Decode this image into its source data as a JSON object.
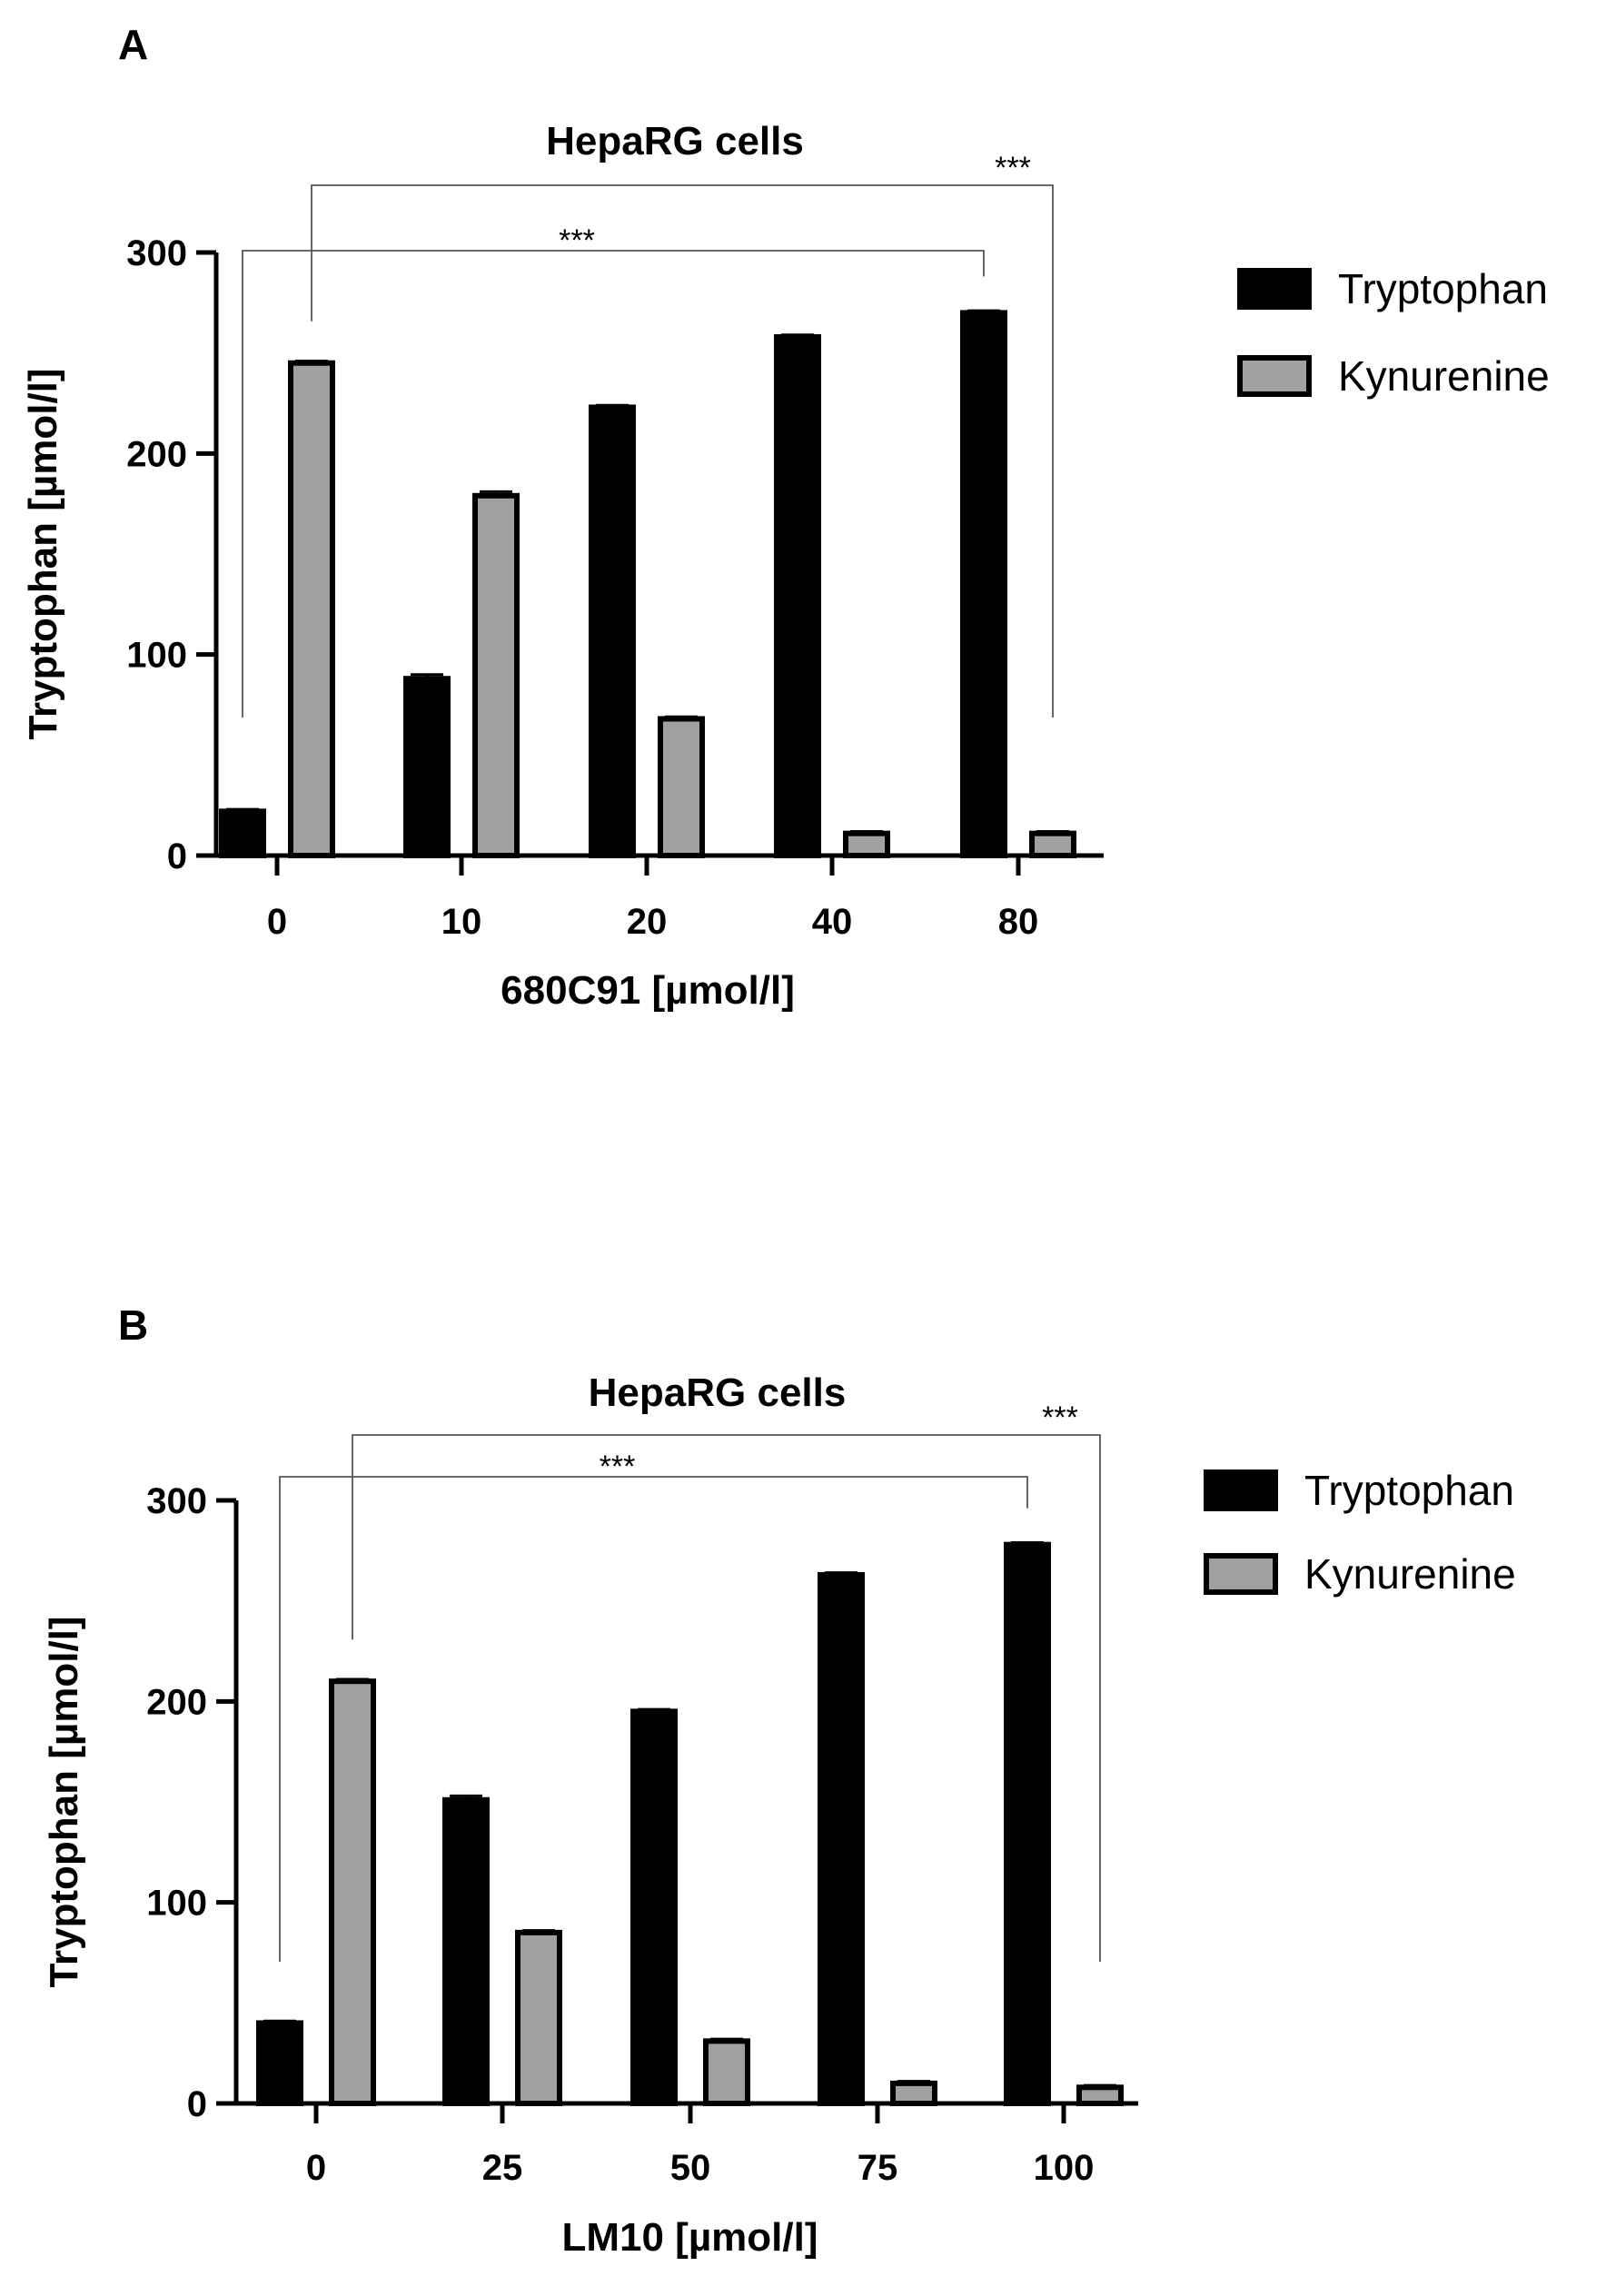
{
  "figure": {
    "panels": [
      "A",
      "B"
    ]
  },
  "chart_data": [
    {
      "panel": "A",
      "type": "bar",
      "title": "HepaRG cells",
      "xlabel": "680C91 [µmol/l]",
      "ylabel": "Tryptophan [µmol/l]",
      "ylim": [
        0,
        300
      ],
      "yticks": [
        "0",
        "100",
        "200",
        "300"
      ],
      "categories": [
        "0",
        "10",
        "20",
        "40",
        "80"
      ],
      "series": [
        {
          "name": "Tryptophan",
          "color": "#000000",
          "values": [
            22,
            88,
            223,
            258,
            270
          ],
          "errors": [
            1,
            2,
            1,
            1,
            1
          ]
        },
        {
          "name": "Kynurenine",
          "color": "#a0a0a0",
          "values": [
            245,
            179,
            68,
            11,
            11
          ],
          "errors": [
            1,
            2,
            1,
            1,
            1
          ]
        }
      ],
      "significance": [
        {
          "label": "***",
          "from": {
            "category": 0,
            "series": 0
          },
          "to": {
            "category": 4,
            "series": 0
          }
        },
        {
          "label": "***",
          "from": {
            "category": 0,
            "series": 1
          },
          "to": {
            "category": 4,
            "series": 1
          }
        }
      ],
      "legend": [
        "Tryptophan",
        "Kynurenine"
      ]
    },
    {
      "panel": "B",
      "type": "bar",
      "title": "HepaRG cells",
      "xlabel": "LM10 [µmol/l]",
      "ylabel": "Tryptophan [µmol/l]",
      "ylim": [
        0,
        300
      ],
      "yticks": [
        "0",
        "100",
        "200",
        "300"
      ],
      "categories": [
        "0",
        "25",
        "50",
        "75",
        "100"
      ],
      "series": [
        {
          "name": "Tryptophan",
          "color": "#000000",
          "values": [
            40,
            151,
            195,
            263,
            278
          ],
          "errors": [
            1,
            2,
            1,
            1,
            1
          ]
        },
        {
          "name": "Kynurenine",
          "color": "#a0a0a0",
          "values": [
            210,
            85,
            31,
            10,
            8
          ],
          "errors": [
            1,
            1,
            1,
            1,
            1
          ]
        }
      ],
      "significance": [
        {
          "label": "***",
          "from": {
            "category": 0,
            "series": 0
          },
          "to": {
            "category": 4,
            "series": 0
          }
        },
        {
          "label": "***",
          "from": {
            "category": 0,
            "series": 1
          },
          "to": {
            "category": 4,
            "series": 1
          }
        }
      ],
      "legend": [
        "Tryptophan",
        "Kynurenine"
      ]
    }
  ]
}
